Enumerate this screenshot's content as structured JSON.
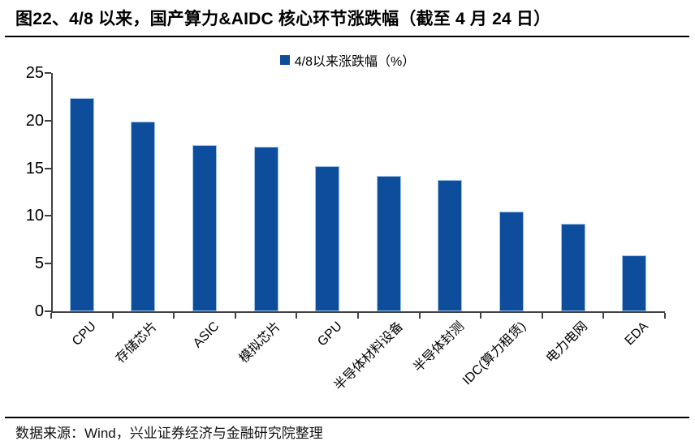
{
  "page": {
    "title": "图22、4/8 以来，国产算力&AIDC 核心环节涨跌幅（截至 4 月 24 日）",
    "source": "数据来源：Wind，兴业证券经济与金融研究院整理"
  },
  "colors": {
    "bar": "#0E4C9C",
    "bar_border": "#9DC3E6",
    "axis": "#404040"
  },
  "chart_data": {
    "type": "bar",
    "title": "图22、4/8 以来，国产算力&AIDC 核心环节涨跌幅（截至 4 月 24 日）",
    "legend": "4/8以来涨跌幅（%）",
    "legend_position": "top-center",
    "categories": [
      "CPU",
      "存储芯片",
      "ASIC",
      "模拟芯片",
      "GPU",
      "半导体材料设备",
      "半导体封测",
      "IDC(算力租赁)",
      "电力电网",
      "EDA"
    ],
    "values": [
      22.4,
      19.9,
      17.4,
      17.3,
      15.2,
      14.2,
      13.8,
      10.5,
      9.2,
      5.9
    ],
    "xlabel": "",
    "ylabel": "",
    "ylim": [
      0,
      25
    ],
    "yticks": [
      0,
      5,
      10,
      15,
      20,
      25
    ],
    "grid": false,
    "x_tick_label_rotation_deg": 45
  }
}
